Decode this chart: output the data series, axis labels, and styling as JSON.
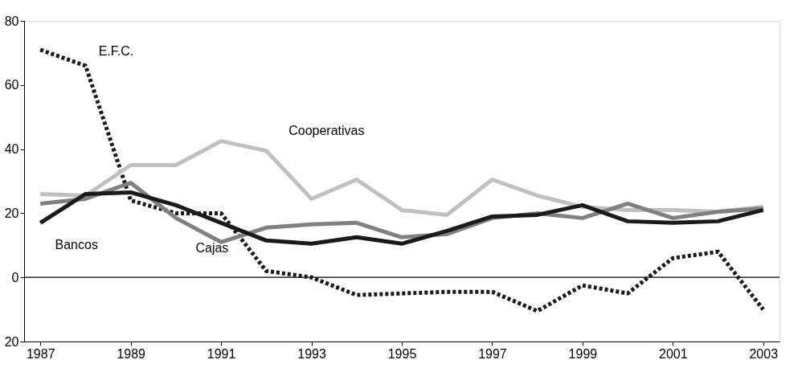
{
  "chart_data": {
    "type": "line",
    "x": [
      1987,
      1988,
      1989,
      1990,
      1991,
      1992,
      1993,
      1994,
      1995,
      1996,
      1997,
      1998,
      1999,
      2000,
      2001,
      2002,
      2003
    ],
    "series": [
      {
        "name": "E.F.C.",
        "color": "#1a1a1a",
        "line_style": "dotted",
        "values": [
          71,
          66,
          24,
          20,
          20,
          2,
          0,
          -5.5,
          -5,
          -4.5,
          -4.5,
          -10.5,
          -2.5,
          -5,
          6,
          8,
          -10
        ]
      },
      {
        "name": "Cooperativas",
        "color": "#c0c0c0",
        "line_style": "solid",
        "values": [
          26,
          25.5,
          35,
          35,
          42.5,
          39.5,
          24.5,
          30.5,
          21,
          19.5,
          30.5,
          25.5,
          22,
          21,
          21,
          20.5,
          22
        ]
      },
      {
        "name": "Cajas",
        "color": "#808080",
        "line_style": "solid",
        "values": [
          23,
          24.5,
          29.5,
          18.5,
          11,
          15.5,
          16.5,
          17,
          12.5,
          13.5,
          18.5,
          20,
          18.5,
          23,
          18.5,
          20.5,
          21.5
        ]
      },
      {
        "name": "Bancos",
        "color": "#1a1a1a",
        "line_style": "solid",
        "values": [
          17,
          26,
          26.5,
          22.5,
          17,
          11.5,
          10.5,
          12.5,
          10.5,
          14.5,
          19,
          19.5,
          22.5,
          17.5,
          17,
          17.5,
          21
        ]
      }
    ],
    "xlim": [
      1986.64,
      2003.36
    ],
    "xticks": [
      1987,
      1989,
      1991,
      1993,
      1995,
      1997,
      1999,
      2001,
      2003
    ],
    "ylim": [
      -20,
      80
    ],
    "yticks": [
      80,
      60,
      40,
      20,
      0,
      {
        "value": -20,
        "label": "20"
      }
    ],
    "ref_lines": [
      {
        "axis": "y",
        "value": 0,
        "color": "#000000",
        "line_style": "solid"
      }
    ],
    "grid": false,
    "legend": false,
    "marker": "none"
  }
}
